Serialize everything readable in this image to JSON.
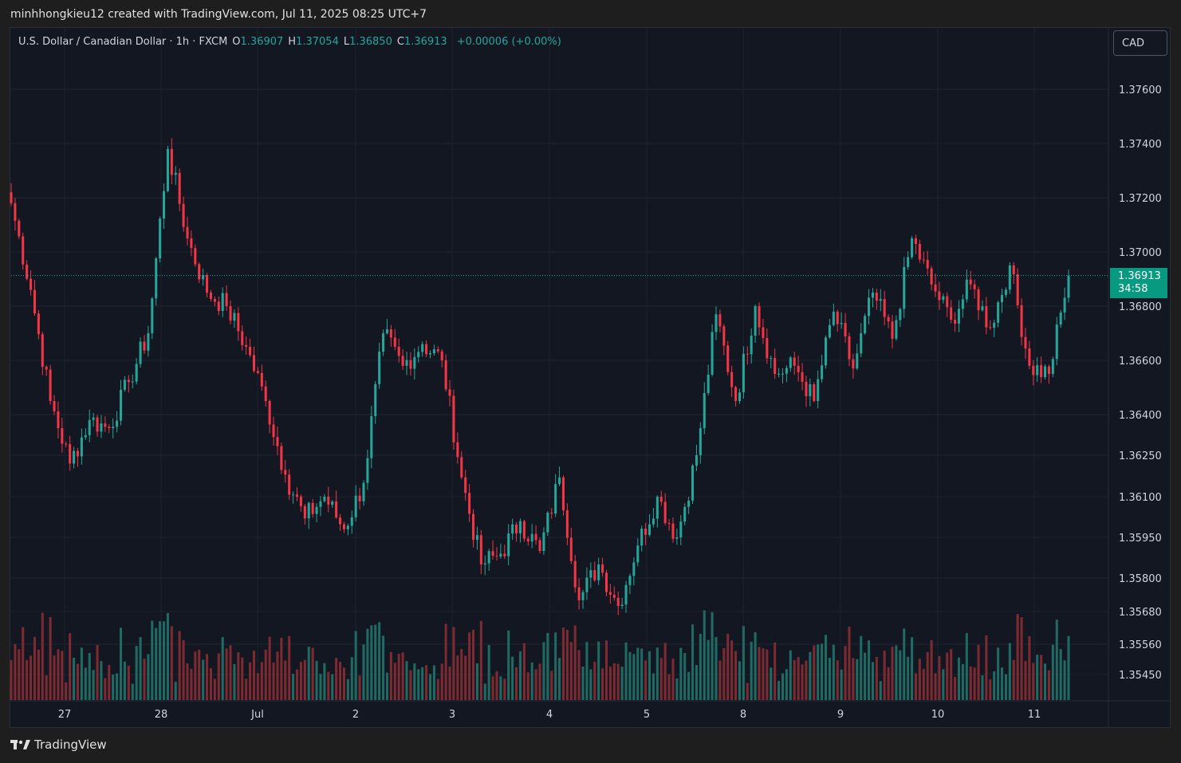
{
  "header": {
    "attribution": "minhhongkieu12 created with TradingView.com, Jul 11, 2025 08:25 UTC+7"
  },
  "legend": {
    "symbol": "U.S. Dollar / Canadian Dollar · 1h · FXCM",
    "open_label": "O",
    "open": "1.36907",
    "high_label": "H",
    "high": "1.37054",
    "low_label": "L",
    "low": "1.36850",
    "close_label": "C",
    "close": "1.36913",
    "change": "+0.00006 (+0.00%)"
  },
  "currency_button": "CAD",
  "last_price": {
    "price": "1.36913",
    "countdown": "34:58"
  },
  "footer": {
    "brand": "TradingView"
  },
  "colors": {
    "up": "#26a69a",
    "down": "#f23645",
    "vol_up": "#1f6b63",
    "vol_down": "#7e2a31",
    "background": "#131722",
    "grid": "#1f2330"
  },
  "chart_data": {
    "type": "candlestick",
    "timeframe": "1h",
    "y_axis": {
      "ticks": [
        "1.37600",
        "1.37400",
        "1.37200",
        "1.37000",
        "1.36800",
        "1.36600",
        "1.36400",
        "1.36250",
        "1.36100",
        "1.35950",
        "1.35800",
        "1.35680",
        "1.35560",
        "1.35450"
      ],
      "approx_range": [
        1.3532,
        1.3775
      ]
    },
    "x_axis": {
      "ticks": [
        "27",
        "28",
        "Jul",
        "2",
        "3",
        "4",
        "5",
        "8",
        "9",
        "10",
        "11"
      ]
    },
    "last_close": 1.36913,
    "anchor_closes": [
      1.3718,
      1.3686,
      1.3645,
      1.3622,
      1.3638,
      1.3635,
      1.3652,
      1.367,
      1.3738,
      1.3705,
      1.3685,
      1.368,
      1.3665,
      1.3645,
      1.3618,
      1.3602,
      1.361,
      1.3598,
      1.3615,
      1.367,
      1.3658,
      1.3666,
      1.366,
      1.3617,
      1.3585,
      1.3589,
      1.3601,
      1.359,
      1.3617,
      1.3572,
      1.3585,
      1.357,
      1.3592,
      1.361,
      1.3595,
      1.3625,
      1.3677,
      1.3645,
      1.368,
      1.3655,
      1.3658,
      1.3645,
      1.3678,
      1.3657,
      1.3685,
      1.3668,
      1.3705,
      1.3688,
      1.3675,
      1.3688,
      1.3672,
      1.3695,
      1.3658,
      1.3655,
      1.36913
    ],
    "candles_per_segment": 5
  }
}
